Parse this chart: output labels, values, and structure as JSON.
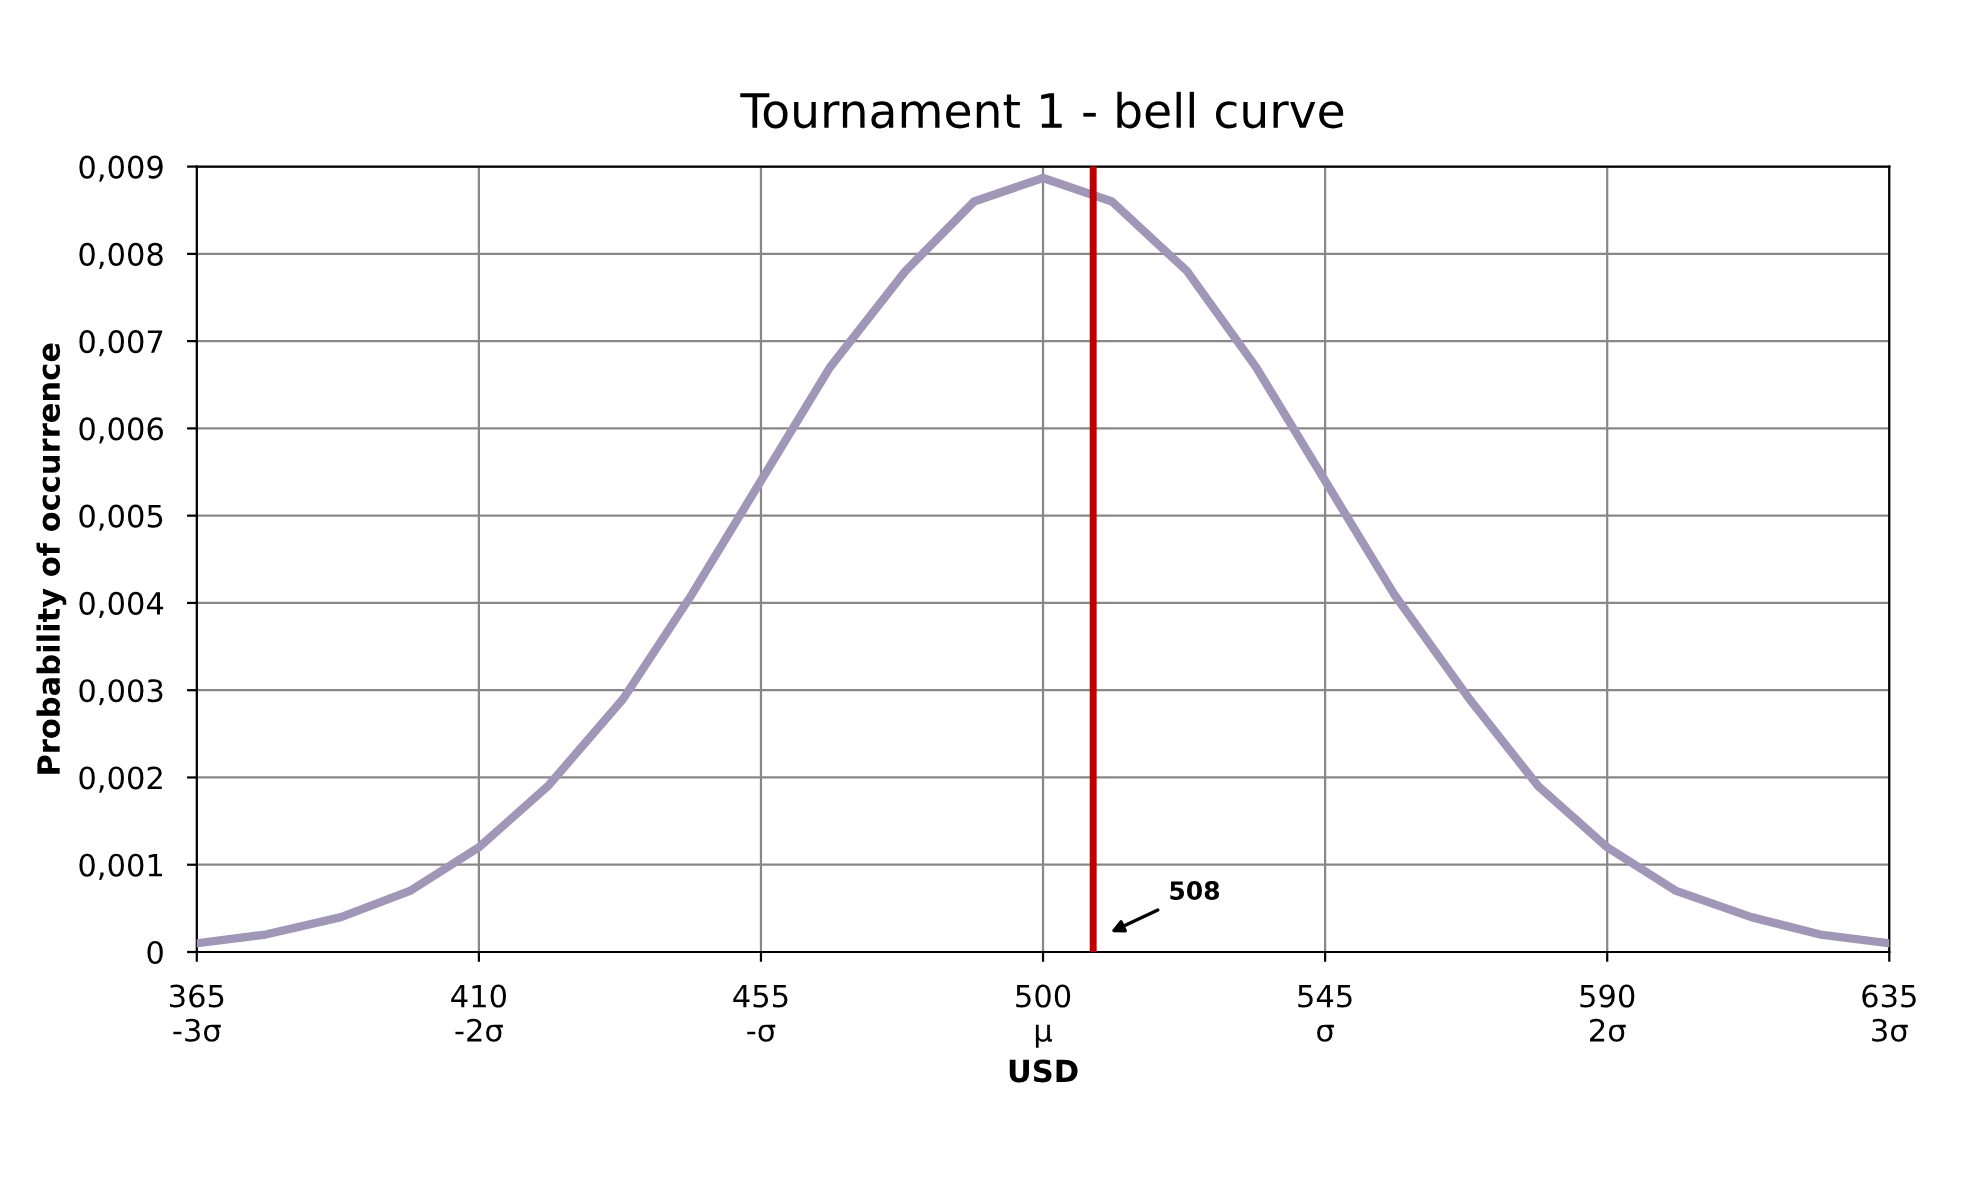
{
  "chart_data": {
    "type": "line",
    "title": "Tournament 1 - bell curve",
    "xlabel": "USD",
    "ylabel": "Probability of occurrence",
    "x": [
      365,
      376,
      388,
      399,
      410,
      421,
      433,
      444,
      455,
      466,
      478,
      489,
      500,
      511,
      523,
      534,
      545,
      556,
      568,
      579,
      590,
      601,
      613,
      624,
      635
    ],
    "series": [
      {
        "color": "#a096b8",
        "values": [
          0.0001,
          0.0002,
          0.0004,
          0.0007,
          0.0012,
          0.0019,
          0.0029,
          0.0041,
          0.0054,
          0.0067,
          0.0078,
          0.0086,
          0.00887,
          0.0086,
          0.0078,
          0.0067,
          0.0054,
          0.0041,
          0.0029,
          0.0019,
          0.0012,
          0.0007,
          0.0004,
          0.0002,
          0.0001
        ]
      }
    ],
    "xlim": [
      365,
      635
    ],
    "xticks": [
      {
        "value": 365,
        "label": "365\n-3σ"
      },
      {
        "value": 410,
        "label": "410\n-2σ"
      },
      {
        "value": 455,
        "label": "455\n-σ"
      },
      {
        "value": 500,
        "label": "500\nμ"
      },
      {
        "value": 545,
        "label": "545\nσ"
      },
      {
        "value": 590,
        "label": "590\n2σ"
      },
      {
        "value": 635,
        "label": "635\n3σ"
      }
    ],
    "ylim": [
      0,
      0.009
    ],
    "yticks": [
      0,
      {
        "value": 0.001,
        "label": "0,001"
      },
      {
        "value": 0.002,
        "label": "0,002"
      },
      {
        "value": 0.003,
        "label": "0,003"
      },
      {
        "value": 0.004,
        "label": "0,004"
      },
      {
        "value": 0.005,
        "label": "0,005"
      },
      {
        "value": 0.006,
        "label": "0,006"
      },
      {
        "value": 0.007,
        "label": "0,007"
      },
      {
        "value": 0.008,
        "label": "0,008"
      },
      {
        "value": 0.009,
        "label": "0,009"
      }
    ],
    "ref_lines": [
      {
        "axis": "x",
        "value": 508,
        "label": "508",
        "color": "#c00000"
      }
    ],
    "grid": true,
    "legend": false,
    "marker": "none",
    "line_style": "solid"
  }
}
